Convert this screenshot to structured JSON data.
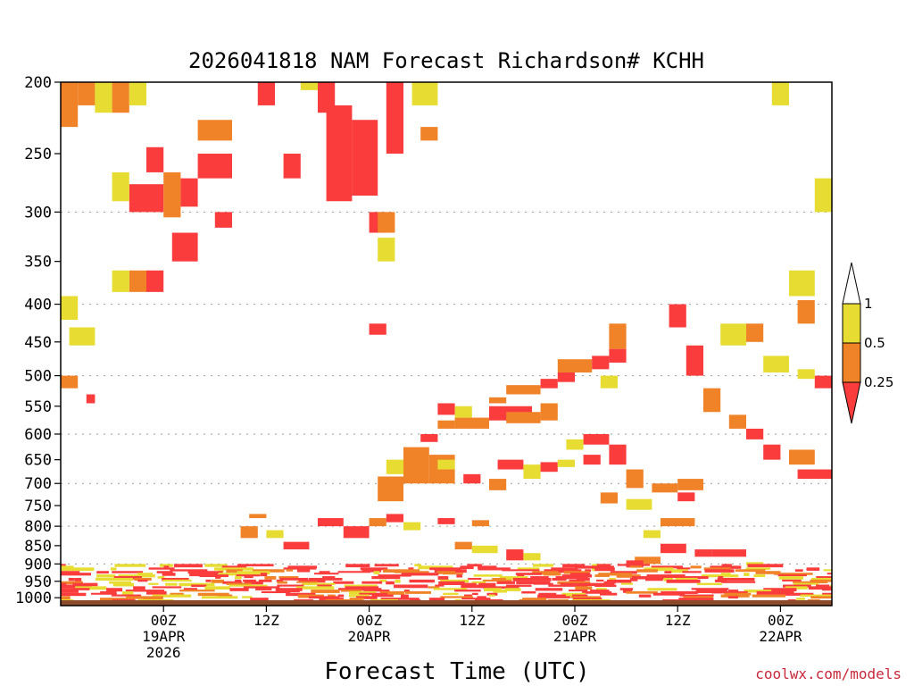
{
  "chart_data": {
    "type": "heatmap",
    "title": "2026041818 NAM Forecast Richardson# KCHH",
    "xlabel": "Forecast Time (UTC)",
    "ylabel": "",
    "credit": "coolwx.com/models",
    "y_axis": {
      "range": [
        200,
        1025
      ],
      "ticks": [
        "200",
        "250",
        "300",
        "350",
        "400",
        "450",
        "500",
        "550",
        "600",
        "650",
        "700",
        "750",
        "800",
        "850",
        "900",
        "950",
        "1000"
      ],
      "gridlines": [
        300,
        400,
        500,
        600,
        700,
        800,
        900
      ]
    },
    "x_axis": {
      "range_hours": [
        -6,
        84
      ],
      "ticks": [
        {
          "hour": 6,
          "line1": "00Z",
          "line2": "19APR",
          "line3": "2026"
        },
        {
          "hour": 18,
          "line1": "12Z",
          "line2": "",
          "line3": ""
        },
        {
          "hour": 30,
          "line1": "00Z",
          "line2": "20APR",
          "line3": ""
        },
        {
          "hour": 42,
          "line1": "12Z",
          "line2": "",
          "line3": ""
        },
        {
          "hour": 54,
          "line1": "00Z",
          "line2": "21APR",
          "line3": ""
        },
        {
          "hour": 66,
          "line1": "12Z",
          "line2": "",
          "line3": ""
        },
        {
          "hour": 78,
          "line1": "00Z",
          "line2": "22APR",
          "line3": ""
        }
      ]
    },
    "colorbar": {
      "labels": [
        "1",
        "0.5",
        "0.25"
      ],
      "bins": [
        {
          "range": "> 1",
          "color": "#ffffff"
        },
        {
          "range": "0.5 - 1",
          "color": "#e6dc32"
        },
        {
          "range": "0.25 - 0.5",
          "color": "#f08228"
        },
        {
          "range": "< 0.25",
          "color": "#fa3c3c"
        }
      ]
    },
    "colors": {
      "yellow": "#e6dc32",
      "orange": "#f08228",
      "red": "#fa3c3c",
      "ground": "#8b4a2b"
    },
    "regions": [
      {
        "h": [
          -6,
          -4
        ],
        "p": [
          200,
          230
        ],
        "c": "orange"
      },
      {
        "h": [
          -4,
          -2
        ],
        "p": [
          200,
          215
        ],
        "c": "orange"
      },
      {
        "h": [
          -2,
          0
        ],
        "p": [
          200,
          220
        ],
        "c": "yellow"
      },
      {
        "h": [
          0,
          2
        ],
        "p": [
          200,
          220
        ],
        "c": "orange"
      },
      {
        "h": [
          2,
          4
        ],
        "p": [
          200,
          215
        ],
        "c": "yellow"
      },
      {
        "h": [
          2,
          6
        ],
        "p": [
          275,
          300
        ],
        "c": "red"
      },
      {
        "h": [
          0,
          2
        ],
        "p": [
          265,
          290
        ],
        "c": "yellow"
      },
      {
        "h": [
          6,
          8
        ],
        "p": [
          265,
          305
        ],
        "c": "orange"
      },
      {
        "h": [
          8,
          10
        ],
        "p": [
          270,
          295
        ],
        "c": "red"
      },
      {
        "h": [
          4,
          6
        ],
        "p": [
          245,
          265
        ],
        "c": "red"
      },
      {
        "h": [
          10,
          14
        ],
        "p": [
          225,
          240
        ],
        "c": "orange"
      },
      {
        "h": [
          10,
          14
        ],
        "p": [
          250,
          270
        ],
        "c": "red"
      },
      {
        "h": [
          12,
          14
        ],
        "p": [
          300,
          315
        ],
        "c": "red"
      },
      {
        "h": [
          7,
          10
        ],
        "p": [
          320,
          350
        ],
        "c": "red"
      },
      {
        "h": [
          4,
          6
        ],
        "p": [
          360,
          385
        ],
        "c": "red"
      },
      {
        "h": [
          2,
          4
        ],
        "p": [
          360,
          385
        ],
        "c": "orange"
      },
      {
        "h": [
          0,
          2
        ],
        "p": [
          360,
          385
        ],
        "c": "yellow"
      },
      {
        "h": [
          -6,
          -4
        ],
        "p": [
          390,
          420
        ],
        "c": "yellow"
      },
      {
        "h": [
          -5,
          -2
        ],
        "p": [
          430,
          455
        ],
        "c": "yellow"
      },
      {
        "h": [
          -6,
          -4
        ],
        "p": [
          500,
          520
        ],
        "c": "orange"
      },
      {
        "h": [
          -3,
          -2
        ],
        "p": [
          530,
          545
        ],
        "c": "red"
      },
      {
        "h": [
          17,
          19
        ],
        "p": [
          200,
          215
        ],
        "c": "red"
      },
      {
        "h": [
          22,
          24
        ],
        "p": [
          200,
          205
        ],
        "c": "yellow"
      },
      {
        "h": [
          24,
          26
        ],
        "p": [
          200,
          220
        ],
        "c": "red"
      },
      {
        "h": [
          25,
          28
        ],
        "p": [
          215,
          290
        ],
        "c": "red"
      },
      {
        "h": [
          28,
          31
        ],
        "p": [
          225,
          285
        ],
        "c": "red"
      },
      {
        "h": [
          20,
          22
        ],
        "p": [
          250,
          270
        ],
        "c": "red"
      },
      {
        "h": [
          30,
          32
        ],
        "p": [
          300,
          320
        ],
        "c": "red"
      },
      {
        "h": [
          31,
          33
        ],
        "p": [
          300,
          320
        ],
        "c": "orange"
      },
      {
        "h": [
          31,
          33
        ],
        "p": [
          325,
          350
        ],
        "c": "yellow"
      },
      {
        "h": [
          32,
          34
        ],
        "p": [
          200,
          250
        ],
        "c": "red"
      },
      {
        "h": [
          35,
          38
        ],
        "p": [
          200,
          215
        ],
        "c": "yellow"
      },
      {
        "h": [
          36,
          38
        ],
        "p": [
          230,
          240
        ],
        "c": "orange"
      },
      {
        "h": [
          30,
          32
        ],
        "p": [
          425,
          440
        ],
        "c": "red"
      },
      {
        "h": [
          36,
          38
        ],
        "p": [
          600,
          615
        ],
        "c": "red"
      },
      {
        "h": [
          34,
          37
        ],
        "p": [
          625,
          700
        ],
        "c": "orange"
      },
      {
        "h": [
          37,
          40
        ],
        "p": [
          640,
          700
        ],
        "c": "orange"
      },
      {
        "h": [
          38,
          40
        ],
        "p": [
          650,
          670
        ],
        "c": "yellow"
      },
      {
        "h": [
          31,
          34
        ],
        "p": [
          685,
          740
        ],
        "c": "orange"
      },
      {
        "h": [
          32,
          34
        ],
        "p": [
          650,
          680
        ],
        "c": "yellow"
      },
      {
        "h": [
          38,
          40
        ],
        "p": [
          545,
          565
        ],
        "c": "red"
      },
      {
        "h": [
          38,
          40
        ],
        "p": [
          575,
          590
        ],
        "c": "orange"
      },
      {
        "h": [
          40,
          44
        ],
        "p": [
          570,
          590
        ],
        "c": "orange"
      },
      {
        "h": [
          40,
          42
        ],
        "p": [
          550,
          570
        ],
        "c": "yellow"
      },
      {
        "h": [
          41,
          43
        ],
        "p": [
          680,
          700
        ],
        "c": "red"
      },
      {
        "h": [
          44,
          46
        ],
        "p": [
          690,
          715
        ],
        "c": "orange"
      },
      {
        "h": [
          44,
          49
        ],
        "p": [
          550,
          575
        ],
        "c": "red"
      },
      {
        "h": [
          44,
          46
        ],
        "p": [
          535,
          545
        ],
        "c": "orange"
      },
      {
        "h": [
          46,
          50
        ],
        "p": [
          515,
          530
        ],
        "c": "orange"
      },
      {
        "h": [
          46,
          50
        ],
        "p": [
          560,
          580
        ],
        "c": "orange"
      },
      {
        "h": [
          50,
          52
        ],
        "p": [
          505,
          520
        ],
        "c": "red"
      },
      {
        "h": [
          50,
          52
        ],
        "p": [
          545,
          575
        ],
        "c": "orange"
      },
      {
        "h": [
          52,
          54
        ],
        "p": [
          495,
          510
        ],
        "c": "red"
      },
      {
        "h": [
          52,
          56
        ],
        "p": [
          475,
          495
        ],
        "c": "orange"
      },
      {
        "h": [
          56,
          58
        ],
        "p": [
          470,
          490
        ],
        "c": "red"
      },
      {
        "h": [
          58,
          60
        ],
        "p": [
          425,
          460
        ],
        "c": "orange"
      },
      {
        "h": [
          58,
          60
        ],
        "p": [
          460,
          480
        ],
        "c": "red"
      },
      {
        "h": [
          57,
          59
        ],
        "p": [
          500,
          520
        ],
        "c": "yellow"
      },
      {
        "h": [
          45,
          48
        ],
        "p": [
          650,
          670
        ],
        "c": "red"
      },
      {
        "h": [
          48,
          50
        ],
        "p": [
          660,
          690
        ],
        "c": "yellow"
      },
      {
        "h": [
          50,
          52
        ],
        "p": [
          655,
          675
        ],
        "c": "red"
      },
      {
        "h": [
          52,
          54
        ],
        "p": [
          650,
          665
        ],
        "c": "yellow"
      },
      {
        "h": [
          55,
          57
        ],
        "p": [
          640,
          660
        ],
        "c": "red"
      },
      {
        "h": [
          55,
          58
        ],
        "p": [
          600,
          620
        ],
        "c": "red"
      },
      {
        "h": [
          53,
          55
        ],
        "p": [
          610,
          630
        ],
        "c": "yellow"
      },
      {
        "h": [
          58,
          60
        ],
        "p": [
          620,
          660
        ],
        "c": "red"
      },
      {
        "h": [
          60,
          62
        ],
        "p": [
          670,
          710
        ],
        "c": "orange"
      },
      {
        "h": [
          63,
          66
        ],
        "p": [
          700,
          720
        ],
        "c": "orange"
      },
      {
        "h": [
          66,
          68
        ],
        "p": [
          720,
          740
        ],
        "c": "red"
      },
      {
        "h": [
          57,
          59
        ],
        "p": [
          720,
          745
        ],
        "c": "orange"
      },
      {
        "h": [
          60,
          63
        ],
        "p": [
          735,
          760
        ],
        "c": "yellow"
      },
      {
        "h": [
          66,
          69
        ],
        "p": [
          690,
          715
        ],
        "c": "orange"
      },
      {
        "h": [
          64,
          68
        ],
        "p": [
          780,
          800
        ],
        "c": "orange"
      },
      {
        "h": [
          62,
          64
        ],
        "p": [
          810,
          830
        ],
        "c": "yellow"
      },
      {
        "h": [
          64,
          67
        ],
        "p": [
          845,
          870
        ],
        "c": "red"
      },
      {
        "h": [
          68,
          70
        ],
        "p": [
          860,
          880
        ],
        "c": "red"
      },
      {
        "h": [
          70,
          74
        ],
        "p": [
          860,
          880
        ],
        "c": "red"
      },
      {
        "h": [
          74,
          76
        ],
        "p": [
          895,
          905
        ],
        "c": "yellow"
      },
      {
        "h": [
          61,
          64
        ],
        "p": [
          880,
          900
        ],
        "c": "orange"
      },
      {
        "h": [
          60,
          62
        ],
        "p": [
          890,
          910
        ],
        "c": "red"
      },
      {
        "h": [
          56,
          58
        ],
        "p": [
          900,
          920
        ],
        "c": "yellow"
      },
      {
        "h": [
          24,
          27
        ],
        "p": [
          780,
          800
        ],
        "c": "red"
      },
      {
        "h": [
          27,
          30
        ],
        "p": [
          800,
          830
        ],
        "c": "red"
      },
      {
        "h": [
          30,
          32
        ],
        "p": [
          780,
          800
        ],
        "c": "orange"
      },
      {
        "h": [
          32,
          34
        ],
        "p": [
          770,
          790
        ],
        "c": "red"
      },
      {
        "h": [
          34,
          36
        ],
        "p": [
          790,
          810
        ],
        "c": "yellow"
      },
      {
        "h": [
          16,
          18
        ],
        "p": [
          770,
          780
        ],
        "c": "orange"
      },
      {
        "h": [
          15,
          17
        ],
        "p": [
          800,
          830
        ],
        "c": "orange"
      },
      {
        "h": [
          20,
          23
        ],
        "p": [
          840,
          860
        ],
        "c": "red"
      },
      {
        "h": [
          18,
          20
        ],
        "p": [
          810,
          830
        ],
        "c": "yellow"
      },
      {
        "h": [
          40,
          42
        ],
        "p": [
          840,
          860
        ],
        "c": "orange"
      },
      {
        "h": [
          42,
          45
        ],
        "p": [
          850,
          870
        ],
        "c": "yellow"
      },
      {
        "h": [
          46,
          48
        ],
        "p": [
          860,
          890
        ],
        "c": "red"
      },
      {
        "h": [
          48,
          50
        ],
        "p": [
          870,
          890
        ],
        "c": "yellow"
      },
      {
        "h": [
          42,
          44
        ],
        "p": [
          785,
          800
        ],
        "c": "orange"
      },
      {
        "h": [
          38,
          40
        ],
        "p": [
          780,
          795
        ],
        "c": "red"
      },
      {
        "h": [
          65,
          67
        ],
        "p": [
          400,
          430
        ],
        "c": "red"
      },
      {
        "h": [
          67,
          69
        ],
        "p": [
          455,
          500
        ],
        "c": "red"
      },
      {
        "h": [
          69,
          71
        ],
        "p": [
          520,
          560
        ],
        "c": "orange"
      },
      {
        "h": [
          72,
          74
        ],
        "p": [
          565,
          590
        ],
        "c": "orange"
      },
      {
        "h": [
          74,
          76
        ],
        "p": [
          590,
          610
        ],
        "c": "red"
      },
      {
        "h": [
          76,
          78
        ],
        "p": [
          620,
          650
        ],
        "c": "red"
      },
      {
        "h": [
          79,
          82
        ],
        "p": [
          630,
          660
        ],
        "c": "orange"
      },
      {
        "h": [
          80,
          84
        ],
        "p": [
          670,
          690
        ],
        "c": "red"
      },
      {
        "h": [
          82,
          84
        ],
        "p": [
          500,
          520
        ],
        "c": "red"
      },
      {
        "h": [
          80,
          82
        ],
        "p": [
          490,
          505
        ],
        "c": "yellow"
      },
      {
        "h": [
          80,
          82
        ],
        "p": [
          395,
          425
        ],
        "c": "orange"
      },
      {
        "h": [
          79,
          82
        ],
        "p": [
          360,
          390
        ],
        "c": "yellow"
      },
      {
        "h": [
          71,
          74
        ],
        "p": [
          425,
          455
        ],
        "c": "yellow"
      },
      {
        "h": [
          74,
          76
        ],
        "p": [
          425,
          450
        ],
        "c": "orange"
      },
      {
        "h": [
          76,
          79
        ],
        "p": [
          470,
          495
        ],
        "c": "yellow"
      },
      {
        "h": [
          77,
          79
        ],
        "p": [
          200,
          215
        ],
        "c": "yellow"
      },
      {
        "h": [
          82,
          84
        ],
        "p": [
          270,
          300
        ],
        "c": "yellow"
      }
    ],
    "surface_layer": {
      "p_top": 1008,
      "p_bottom": 1025,
      "color": "ground"
    }
  }
}
